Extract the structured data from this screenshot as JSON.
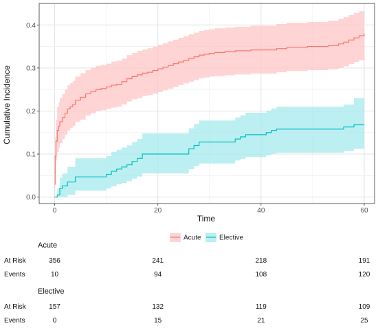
{
  "chart_data": {
    "type": "line",
    "xlabel": "Time",
    "ylabel": "Cumulative Incidence",
    "xlim": [
      -3,
      62
    ],
    "ylim": [
      -0.015,
      0.45
    ],
    "x_ticks": [
      0,
      20,
      40,
      60
    ],
    "y_ticks": [
      0.0,
      0.1,
      0.2,
      0.3,
      0.4
    ],
    "grid": true,
    "legend_position": "bottom",
    "series": [
      {
        "name": "Acute",
        "color": "#F8766D",
        "band_color": "#FFC5C5",
        "x": [
          0,
          0.1,
          0.25,
          0.5,
          0.8,
          1.0,
          1.5,
          2.0,
          2.5,
          3.0,
          3.5,
          4.0,
          5.0,
          6.0,
          7.0,
          8.0,
          9.0,
          10.0,
          11.0,
          12.0,
          13.0,
          14.0,
          15.0,
          16.0,
          17.0,
          18.0,
          19.0,
          20.0,
          21.0,
          22.0,
          23.0,
          24.0,
          25.0,
          26.0,
          27.0,
          28.0,
          29.0,
          30.0,
          31.0,
          33.0,
          35.0,
          38.0,
          41.0,
          43.0,
          45.0,
          47.0,
          49.0,
          51.0,
          53.0,
          55.0,
          56.0,
          57.0,
          58.0,
          59.0,
          60.0
        ],
        "y": [
          0.03,
          0.095,
          0.13,
          0.155,
          0.165,
          0.175,
          0.185,
          0.195,
          0.205,
          0.21,
          0.215,
          0.225,
          0.232,
          0.24,
          0.245,
          0.25,
          0.252,
          0.256,
          0.26,
          0.262,
          0.268,
          0.275,
          0.28,
          0.284,
          0.288,
          0.29,
          0.294,
          0.298,
          0.302,
          0.306,
          0.31,
          0.314,
          0.318,
          0.322,
          0.326,
          0.33,
          0.332,
          0.334,
          0.336,
          0.338,
          0.34,
          0.342,
          0.342,
          0.345,
          0.348,
          0.348,
          0.35,
          0.35,
          0.352,
          0.356,
          0.36,
          0.365,
          0.37,
          0.375,
          0.38
        ],
        "lower": [
          0.0,
          0.055,
          0.085,
          0.105,
          0.115,
          0.125,
          0.135,
          0.145,
          0.155,
          0.16,
          0.165,
          0.175,
          0.18,
          0.19,
          0.195,
          0.2,
          0.202,
          0.205,
          0.208,
          0.21,
          0.215,
          0.222,
          0.227,
          0.23,
          0.235,
          0.237,
          0.24,
          0.244,
          0.248,
          0.252,
          0.256,
          0.26,
          0.264,
          0.268,
          0.272,
          0.276,
          0.278,
          0.28,
          0.281,
          0.283,
          0.285,
          0.287,
          0.287,
          0.29,
          0.293,
          0.293,
          0.295,
          0.295,
          0.297,
          0.3,
          0.304,
          0.309,
          0.314,
          0.318,
          0.323
        ],
        "upper": [
          0.06,
          0.14,
          0.18,
          0.21,
          0.22,
          0.23,
          0.24,
          0.25,
          0.26,
          0.265,
          0.27,
          0.28,
          0.288,
          0.295,
          0.3,
          0.305,
          0.307,
          0.31,
          0.315,
          0.317,
          0.322,
          0.33,
          0.335,
          0.34,
          0.343,
          0.346,
          0.35,
          0.354,
          0.358,
          0.362,
          0.366,
          0.37,
          0.374,
          0.378,
          0.382,
          0.386,
          0.388,
          0.39,
          0.392,
          0.394,
          0.396,
          0.398,
          0.398,
          0.402,
          0.405,
          0.405,
          0.407,
          0.407,
          0.41,
          0.414,
          0.418,
          0.423,
          0.428,
          0.432,
          0.437
        ]
      },
      {
        "name": "Elective",
        "color": "#00BFC4",
        "band_color": "#A6E9EC",
        "x": [
          0,
          0.5,
          1.0,
          1.5,
          2.5,
          4.0,
          10.0,
          11.0,
          12.0,
          13.0,
          14.0,
          15.0,
          16.0,
          17.0,
          26.0,
          27.0,
          28.0,
          35.0,
          36.0,
          37.0,
          41.0,
          42.0,
          43.0,
          56.0,
          58.0,
          60.0
        ],
        "y": [
          0.0,
          0.005,
          0.02,
          0.026,
          0.035,
          0.047,
          0.053,
          0.06,
          0.065,
          0.07,
          0.075,
          0.083,
          0.09,
          0.1,
          0.112,
          0.12,
          0.128,
          0.135,
          0.14,
          0.145,
          0.15,
          0.155,
          0.158,
          0.163,
          0.168,
          0.168
        ],
        "lower": [
          0.0,
          0.0,
          0.0,
          0.0,
          0.005,
          0.015,
          0.02,
          0.025,
          0.03,
          0.033,
          0.037,
          0.043,
          0.048,
          0.055,
          0.065,
          0.072,
          0.078,
          0.085,
          0.089,
          0.093,
          0.097,
          0.101,
          0.103,
          0.107,
          0.112,
          0.112
        ],
        "upper": [
          0.0,
          0.02,
          0.045,
          0.055,
          0.07,
          0.09,
          0.095,
          0.105,
          0.11,
          0.115,
          0.12,
          0.128,
          0.135,
          0.148,
          0.16,
          0.17,
          0.178,
          0.185,
          0.19,
          0.196,
          0.201,
          0.206,
          0.21,
          0.215,
          0.23,
          0.23
        ]
      }
    ]
  },
  "risk_table": {
    "time_points": [
      0,
      20,
      40,
      60
    ],
    "row_labels": {
      "at_risk": "At Risk",
      "events": "Events"
    },
    "groups": [
      {
        "name": "Acute",
        "at_risk": [
          "356",
          "241",
          "218",
          "191"
        ],
        "events": [
          "10",
          "94",
          "108",
          "120"
        ]
      },
      {
        "name": "Elective",
        "at_risk": [
          "157",
          "132",
          "119",
          "109"
        ],
        "events": [
          "0",
          "15",
          "21",
          "25"
        ]
      }
    ]
  }
}
